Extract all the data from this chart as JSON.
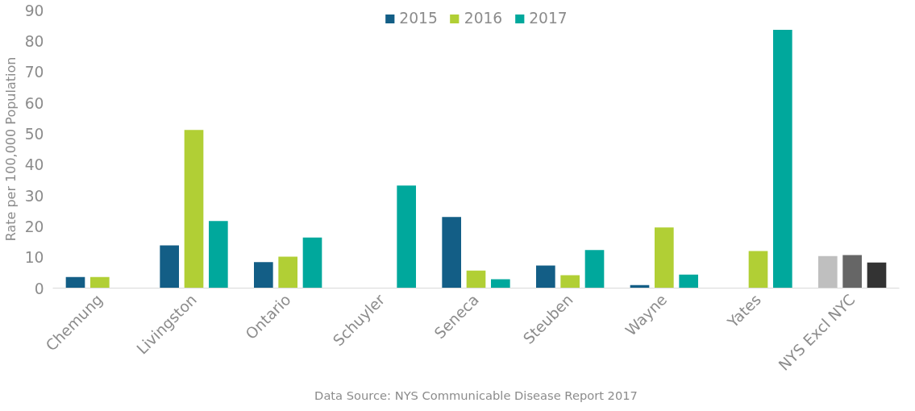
{
  "chart_data": {
    "type": "bar",
    "ylabel": "Rate per 100,000 Population",
    "categories": [
      "Chemung",
      "Livingston",
      "Ontario",
      "Schuyler",
      "Seneca",
      "Steuben",
      "Wayne",
      "Yates",
      "NYS Excl NYC"
    ],
    "series": [
      {
        "name": "2015",
        "color": "#135e86",
        "colors": [
          null,
          null,
          null,
          null,
          null,
          null,
          null,
          null,
          "#bfbfbf"
        ],
        "values": [
          3.6,
          13.8,
          8.4,
          null,
          23.0,
          7.3,
          1.0,
          null,
          10.4
        ]
      },
      {
        "name": "2016",
        "color": "#b1cf35",
        "colors": [
          null,
          null,
          null,
          null,
          null,
          null,
          null,
          null,
          "#666666"
        ],
        "values": [
          3.6,
          51.2,
          10.2,
          null,
          5.7,
          4.2,
          19.6,
          12.0,
          10.7
        ]
      },
      {
        "name": "2017",
        "color": "#00a89c",
        "colors": [
          null,
          null,
          null,
          null,
          null,
          null,
          null,
          null,
          "#333333"
        ],
        "values": [
          null,
          21.7,
          16.4,
          33.2,
          2.9,
          12.3,
          4.4,
          83.6,
          8.3
        ]
      }
    ],
    "ylim": [
      0,
      90
    ],
    "yticks": [
      0,
      10,
      20,
      30,
      40,
      50,
      60,
      70,
      80,
      90
    ],
    "grid": false,
    "legend": "top",
    "annotations": [
      "Data Source: NYS Communicable Disease Report 2017"
    ]
  }
}
